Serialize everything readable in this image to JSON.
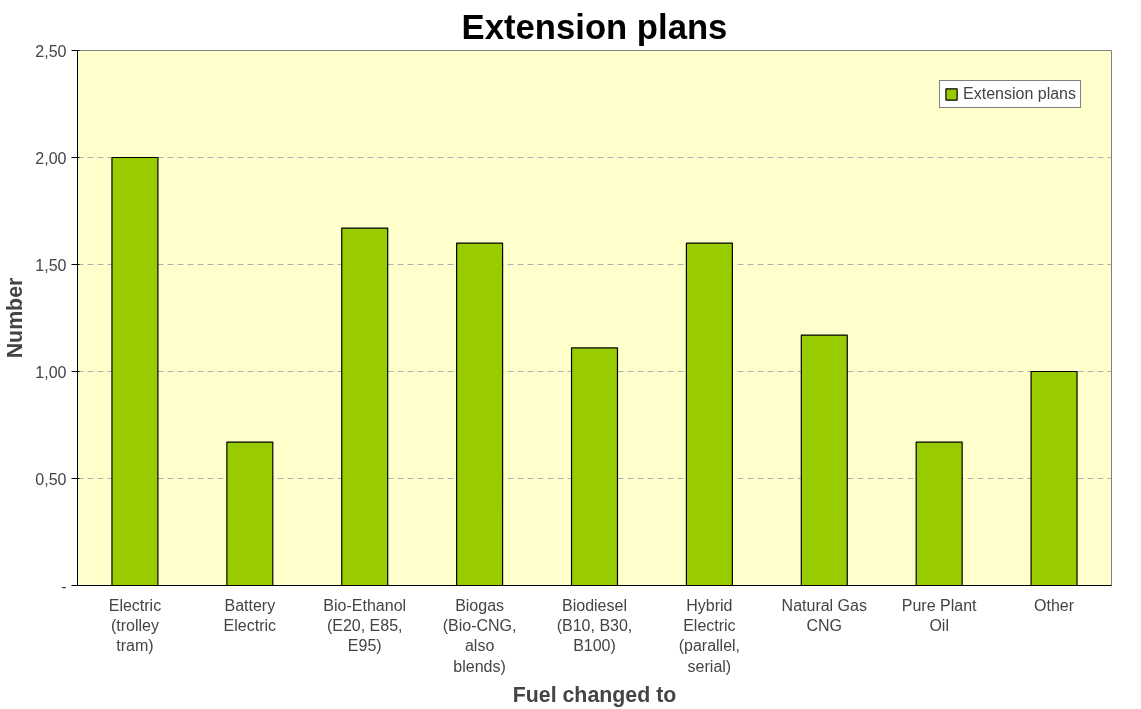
{
  "chart_data": {
    "type": "bar",
    "title": "Extension plans",
    "xlabel": "Fuel changed to",
    "ylabel": "Number",
    "categories": [
      "Electric (trolley tram)",
      "Battery Electric",
      "Bio-Ethanol (E20, E85, E95)",
      "Biogas (Bio-CNG, also blends)",
      "Biodiesel (B10, B30, B100)",
      "Hybrid Electric (parallel, serial)",
      "Natural Gas CNG",
      "Pure Plant Oil",
      "Other"
    ],
    "series": [
      {
        "name": "Extension plans",
        "color": "#99cc00",
        "values": [
          2.0,
          0.67,
          1.67,
          1.6,
          1.11,
          1.6,
          1.17,
          0.67,
          1.0
        ]
      }
    ],
    "ylim": [
      0,
      2.5
    ],
    "yticks": [
      {
        "value": 0,
        "label": "-"
      },
      {
        "value": 0.5,
        "label": "0,50"
      },
      {
        "value": 1.0,
        "label": "1,00"
      },
      {
        "value": 1.5,
        "label": "1,50"
      },
      {
        "value": 2.0,
        "label": "2,00"
      },
      {
        "value": 2.5,
        "label": "2,50"
      }
    ],
    "grid": "y",
    "legend": "top right"
  }
}
